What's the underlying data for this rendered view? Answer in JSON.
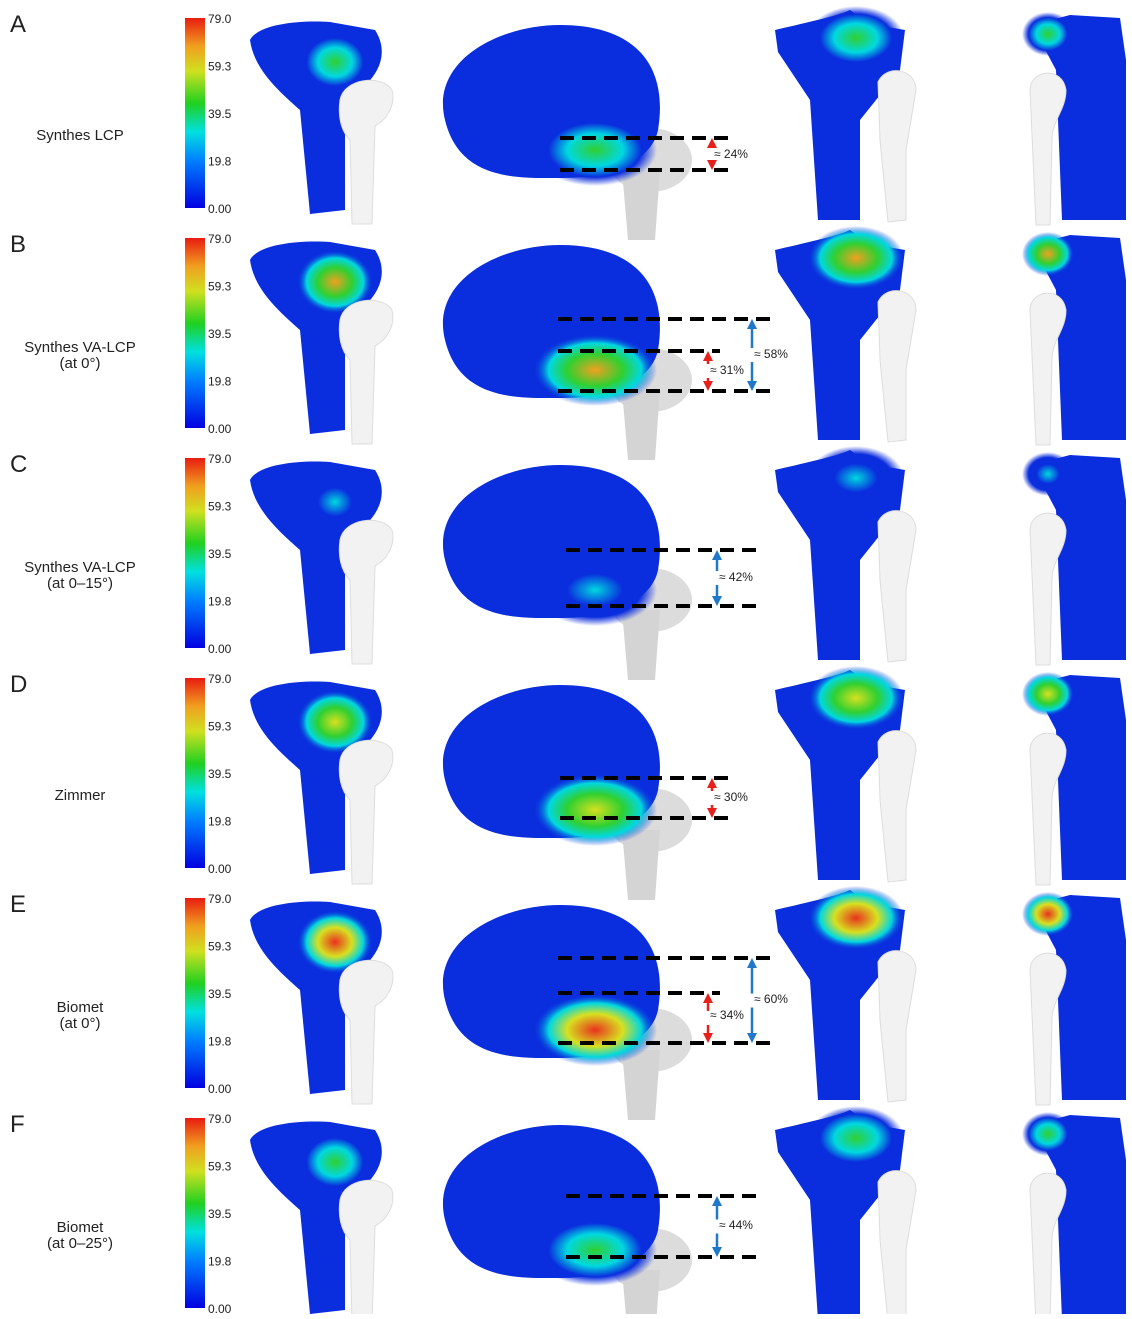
{
  "figure": {
    "colorbar": {
      "ticks": [
        "79.0",
        "59.3",
        "39.5",
        "19.8",
        "0.00"
      ]
    },
    "panels": [
      {
        "letter": "A",
        "label": [
          "Synthes LCP"
        ],
        "annotations": [
          {
            "text": "≈ 24%",
            "color": "#e8201c"
          }
        ]
      },
      {
        "letter": "B",
        "label": [
          "Synthes VA-LCP",
          "(at 0°)"
        ],
        "annotations": [
          {
            "text": "≈ 58%",
            "color": "#1f78c8"
          },
          {
            "text": "≈ 31%",
            "color": "#e8201c"
          }
        ]
      },
      {
        "letter": "C",
        "label": [
          "Synthes VA-LCP",
          "(at 0–15°)"
        ],
        "annotations": [
          {
            "text": "≈ 42%",
            "color": "#1f78c8"
          }
        ]
      },
      {
        "letter": "D",
        "label": [
          "Zimmer"
        ],
        "annotations": [
          {
            "text": "≈ 30%",
            "color": "#e8201c"
          }
        ]
      },
      {
        "letter": "E",
        "label": [
          "Biomet",
          "(at 0°)"
        ],
        "annotations": [
          {
            "text": "≈ 60%",
            "color": "#1f78c8"
          },
          {
            "text": "≈ 34%",
            "color": "#e8201c"
          }
        ]
      },
      {
        "letter": "F",
        "label": [
          "Biomet",
          "(at 0–25°)"
        ],
        "annotations": [
          {
            "text": "≈ 44%",
            "color": "#1f78c8"
          }
        ]
      }
    ]
  }
}
